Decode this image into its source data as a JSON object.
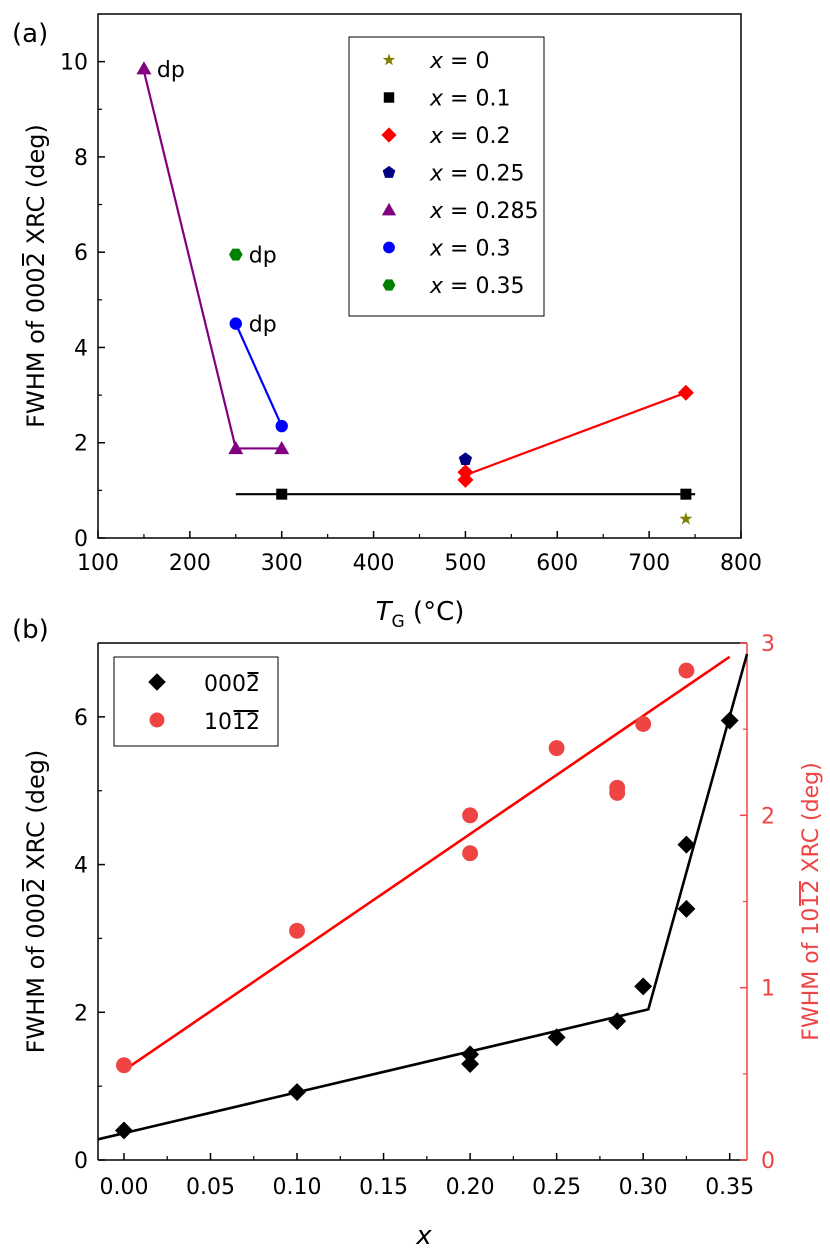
{
  "chart_data": [
    {
      "panel": "(a)",
      "type": "scatter",
      "xlabel": "T",
      "xlabel_sub": "G",
      "xlabel_unit": " (°C)",
      "ylabel_pre": "FWHM of 000",
      "ylabel_bar": "2",
      "ylabel_post": " XRC (deg)",
      "xlim": [
        100,
        800
      ],
      "ylim": [
        0,
        11
      ],
      "xticks": [
        100,
        200,
        300,
        400,
        500,
        600,
        700,
        800
      ],
      "yticks": [
        0,
        2,
        4,
        6,
        8,
        10
      ],
      "grid": false,
      "legend_position": "top-center",
      "legend_var": "x",
      "series": [
        {
          "name": "0",
          "marker": "star",
          "color": "#808000",
          "points": [
            [
              740,
              0.4
            ]
          ]
        },
        {
          "name": "0.1",
          "marker": "square",
          "color": "#000000",
          "points": [
            [
              300,
              0.92
            ],
            [
              740,
              0.92
            ]
          ]
        },
        {
          "name": "0.2",
          "marker": "diamond",
          "color": "#ff0000",
          "points": [
            [
              500,
              1.22
            ],
            [
              500,
              1.38
            ],
            [
              740,
              3.05
            ]
          ]
        },
        {
          "name": "0.25",
          "marker": "pentagon",
          "color": "#000080",
          "points": [
            [
              500,
              1.65
            ]
          ]
        },
        {
          "name": "0.285",
          "marker": "triangle",
          "color": "#800080",
          "points": [
            [
              150,
              9.85
            ],
            [
              250,
              1.88
            ],
            [
              300,
              1.88
            ]
          ]
        },
        {
          "name": "0.3",
          "marker": "circle",
          "color": "#0000ff",
          "points": [
            [
              250,
              4.5
            ],
            [
              300,
              2.35
            ]
          ]
        },
        {
          "name": "0.35",
          "marker": "hexagon",
          "color": "#008000",
          "points": [
            [
              250,
              5.95
            ]
          ]
        }
      ],
      "lines": [
        {
          "color": "#000000",
          "points": [
            [
              250,
              0.92
            ],
            [
              750,
              0.92
            ]
          ]
        },
        {
          "color": "#ff0000",
          "points": [
            [
              500,
              1.32
            ],
            [
              740,
              3.05
            ]
          ]
        },
        {
          "color": "#800080",
          "points": [
            [
              150,
              9.8
            ],
            [
              250,
              1.88
            ],
            [
              300,
              1.88
            ]
          ]
        },
        {
          "color": "#0000ff",
          "points": [
            [
              250,
              4.5
            ],
            [
              300,
              2.35
            ]
          ]
        }
      ],
      "annotations": [
        {
          "text": "dp",
          "x": 150,
          "y": 9.85
        },
        {
          "text": "dp",
          "x": 250,
          "y": 5.95
        },
        {
          "text": "dp",
          "x": 250,
          "y": 4.5
        }
      ]
    },
    {
      "panel": "(b)",
      "type": "scatter",
      "xlabel": "x",
      "ylabel_pre": "FWHM of 000",
      "ylabel_bar": "2",
      "ylabel_post": " XRC (deg)",
      "y2label_pre": "FWHM of 10",
      "y2label_bar": "12",
      "y2label_post": " XRC (deg)",
      "xlim": [
        -0.015,
        0.36
      ],
      "ylim": [
        0,
        7
      ],
      "y2lim": [
        0,
        3
      ],
      "xticks": [
        "0.00",
        "0.05",
        "0.10",
        "0.15",
        "0.20",
        "0.25",
        "0.30",
        "0.35"
      ],
      "yticks": [
        0,
        2,
        4,
        6
      ],
      "y2ticks": [
        0,
        1,
        2,
        3
      ],
      "grid": false,
      "legend_position": "top-left",
      "series": [
        {
          "name_pre": "000",
          "name_bar": "2",
          "axis": "left",
          "marker": "diamond",
          "color": "#000000",
          "points": [
            [
              0.0,
              0.4
            ],
            [
              0.1,
              0.92
            ],
            [
              0.2,
              1.3
            ],
            [
              0.2,
              1.43
            ],
            [
              0.25,
              1.66
            ],
            [
              0.285,
              1.88
            ],
            [
              0.3,
              2.35
            ],
            [
              0.325,
              3.4
            ],
            [
              0.325,
              4.27
            ],
            [
              0.35,
              5.95
            ]
          ]
        },
        {
          "name_pre": "10",
          "name_bar": "12",
          "axis": "right",
          "marker": "circle",
          "color": "#ee4444",
          "points": [
            [
              0.0,
              0.55
            ],
            [
              0.1,
              1.33
            ],
            [
              0.2,
              1.78
            ],
            [
              0.2,
              2.0
            ],
            [
              0.25,
              2.39
            ],
            [
              0.285,
              2.13
            ],
            [
              0.285,
              2.16
            ],
            [
              0.3,
              2.53
            ],
            [
              0.325,
              2.84
            ]
          ]
        }
      ],
      "lines": [
        {
          "axis": "left",
          "color": "#000000",
          "points": [
            [
              -0.015,
              0.28
            ],
            [
              0.303,
              2.04
            ],
            [
              0.36,
              6.85
            ]
          ]
        },
        {
          "axis": "right",
          "color": "#ff0000",
          "points": [
            [
              0.0,
              0.52
            ],
            [
              0.35,
              2.92
            ]
          ]
        }
      ]
    }
  ]
}
